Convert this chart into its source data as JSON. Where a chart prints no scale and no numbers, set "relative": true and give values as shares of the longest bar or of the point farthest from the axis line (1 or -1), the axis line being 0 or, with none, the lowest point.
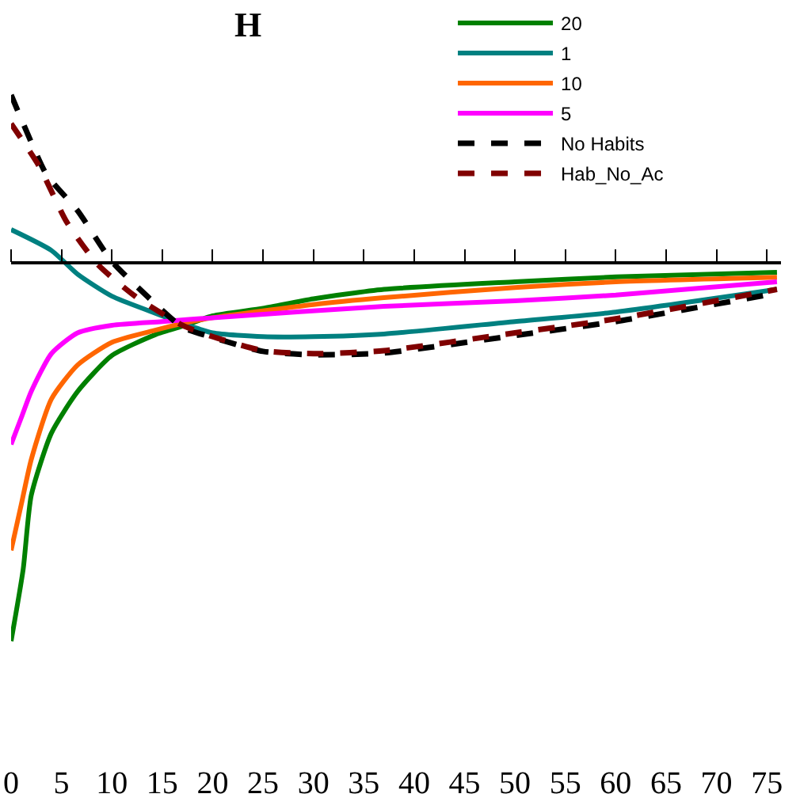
{
  "chart_data": {
    "type": "line",
    "title": "H",
    "relative": true,
    "xlim": [
      0,
      76.4
    ],
    "xticks": [
      0,
      5,
      10,
      15,
      20,
      25,
      30,
      35,
      40,
      45,
      50,
      55,
      60,
      65,
      70,
      75
    ],
    "legend": "top right",
    "marker": "none",
    "series": [
      {
        "name": "20",
        "color": "#008000",
        "line_style": "solid",
        "x": [
          0,
          1.2,
          2,
          4,
          6.6,
          10,
          14.3,
          17.3,
          20,
          25,
          30,
          37,
          50,
          60,
          76
        ],
        "values": [
          -1.0,
          -0.81,
          -0.615,
          -0.45,
          -0.34,
          -0.245,
          -0.19,
          -0.165,
          -0.14,
          -0.12,
          -0.095,
          -0.07,
          -0.05,
          -0.037,
          -0.025
        ]
      },
      {
        "name": "1",
        "color": "#008080",
        "line_style": "solid",
        "x": [
          0,
          4,
          6.6,
          10,
          14,
          17,
          20,
          25,
          30,
          37,
          50,
          60,
          76
        ],
        "values": [
          0.088,
          0.033,
          -0.03,
          -0.088,
          -0.13,
          -0.16,
          -0.185,
          -0.195,
          -0.195,
          -0.188,
          -0.155,
          -0.13,
          -0.07
        ]
      },
      {
        "name": "10",
        "color": "#ff6600",
        "line_style": "solid",
        "x": [
          0,
          1,
          2,
          4,
          6.6,
          10,
          14,
          17,
          20,
          30,
          37,
          50,
          60,
          76
        ],
        "values": [
          -0.76,
          -0.64,
          -0.52,
          -0.36,
          -0.27,
          -0.21,
          -0.18,
          -0.16,
          -0.145,
          -0.11,
          -0.092,
          -0.065,
          -0.05,
          -0.038
        ]
      },
      {
        "name": "5",
        "color": "#ff00ff",
        "line_style": "solid",
        "x": [
          0,
          1,
          2,
          4,
          6.6,
          10,
          15,
          20,
          37,
          50,
          60,
          76
        ],
        "values": [
          -0.48,
          -0.41,
          -0.34,
          -0.24,
          -0.185,
          -0.165,
          -0.155,
          -0.145,
          -0.115,
          -0.1,
          -0.085,
          -0.05
        ]
      },
      {
        "name": "No Habits",
        "color": "#000000",
        "line_style": "dashed",
        "x": [
          0,
          1.5,
          3.5,
          6.6,
          10,
          13.5,
          17,
          20,
          25,
          30,
          37,
          50,
          60,
          76
        ],
        "values": [
          0.444,
          0.35,
          0.234,
          0.138,
          0.004,
          -0.088,
          -0.17,
          -0.197,
          -0.234,
          -0.243,
          -0.238,
          -0.192,
          -0.155,
          -0.08
        ]
      },
      {
        "name": "Hab_No_Ac",
        "color": "#800000",
        "line_style": "dashed",
        "x": [
          0,
          2.8,
          5.5,
          8.6,
          12.3,
          17,
          20,
          25,
          30,
          37,
          50,
          60,
          76
        ],
        "values": [
          0.368,
          0.255,
          0.109,
          -0.004,
          -0.088,
          -0.165,
          -0.195,
          -0.232,
          -0.24,
          -0.232,
          -0.185,
          -0.148,
          -0.07
        ]
      }
    ]
  }
}
